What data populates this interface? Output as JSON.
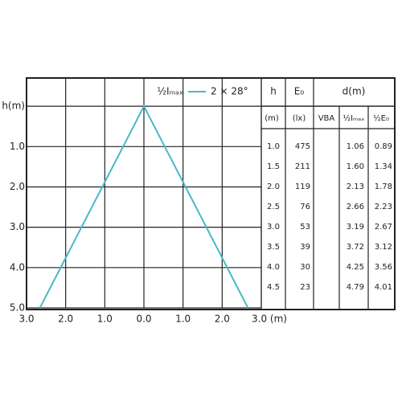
{
  "chart_data": {
    "type": "line",
    "legend_title": "½Iₘₐₓ",
    "series": [
      {
        "name": "2 × 28°",
        "color": "#4ab8c4",
        "x": [
          -2.66,
          0,
          2.66
        ],
        "values": [
          5.0,
          0,
          5.0
        ]
      }
    ],
    "xlim": [
      -3,
      3
    ],
    "xticks": [
      {
        "value": -3,
        "label": "3.0"
      },
      {
        "value": -2,
        "label": "2.0"
      },
      {
        "value": -1,
        "label": "1.0"
      },
      {
        "value": 0,
        "label": "0.0"
      },
      {
        "value": 1,
        "label": "1.0"
      },
      {
        "value": 2,
        "label": "2.0"
      },
      {
        "value": 3,
        "label": "3.0 (m)"
      }
    ],
    "ylim": [
      -0.7,
      5.0
    ],
    "yticks": [
      {
        "value": 0,
        "label": "h(m)"
      },
      {
        "value": 1,
        "label": "1.0"
      },
      {
        "value": 2,
        "label": "2.0"
      },
      {
        "value": 3,
        "label": "3.0"
      },
      {
        "value": 4,
        "label": "4.0"
      },
      {
        "value": 5,
        "label": "5.0"
      }
    ],
    "grid": true
  },
  "table": {
    "header": [
      "h",
      "E₀",
      "d(m)"
    ],
    "subheader": [
      "(m)",
      "(lx)",
      "VBA",
      "½Iₘₐₓ",
      "½E₀"
    ],
    "rows": [
      [
        "1.0",
        "475",
        "1.06",
        "0.89"
      ],
      [
        "1.5",
        "211",
        "1.60",
        "1.34"
      ],
      [
        "2.0",
        "119",
        "2.13",
        "1.78"
      ],
      [
        "2.5",
        "76",
        "2.66",
        "2.23"
      ],
      [
        "3.0",
        "53",
        "3.19",
        "2.67"
      ],
      [
        "3.5",
        "39",
        "3.72",
        "3.12"
      ],
      [
        "4.0",
        "30",
        "4.25",
        "3.56"
      ],
      [
        "4.5",
        "23",
        "4.79",
        "4.01"
      ]
    ]
  }
}
